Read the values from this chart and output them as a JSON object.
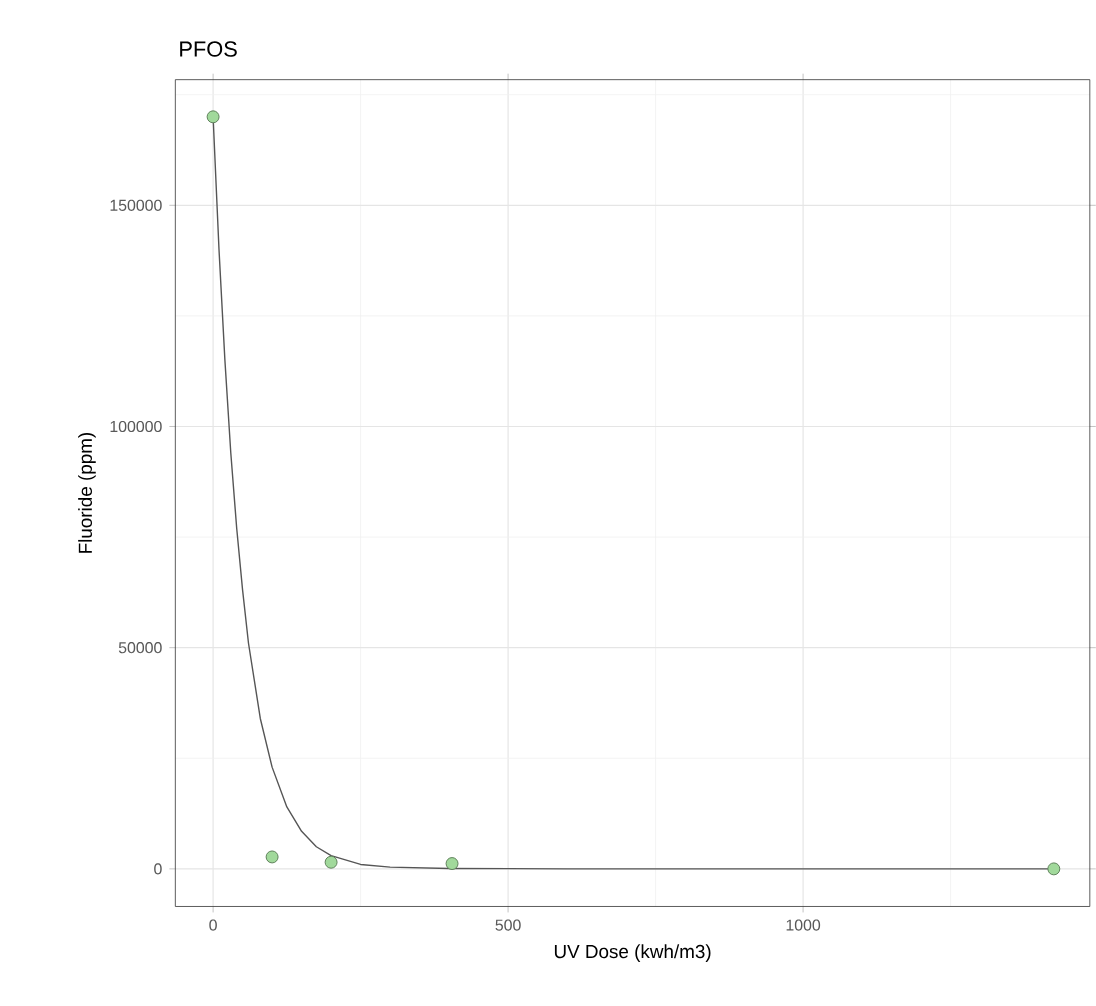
{
  "chart_data": {
    "type": "scatter",
    "title": "PFOS",
    "xlabel": "UV Dose (kwh/m3)",
    "ylabel": "Fluoride (ppm)",
    "xlim": [
      -64,
      1486
    ],
    "ylim": [
      -8500,
      178400
    ],
    "xticks": [
      0,
      500,
      1000
    ],
    "yticks": [
      0,
      50000,
      100000,
      150000
    ],
    "grid": true,
    "series": [
      {
        "marker": "circle",
        "color": "#a1d99b",
        "x": [
          0,
          100,
          200,
          405,
          1425
        ],
        "values": [
          170000,
          2700,
          1500,
          1200,
          0
        ]
      },
      {
        "type": "line",
        "marker": "none",
        "color": "#555555",
        "x": [
          0,
          10,
          20,
          30,
          40,
          50,
          60,
          80,
          100,
          125,
          150,
          175,
          200,
          250,
          300,
          400,
          600,
          1000,
          1425
        ],
        "values": [
          170000,
          140000,
          115000,
          94000,
          77000,
          63000,
          51000,
          34000,
          23000,
          14000,
          8500,
          5000,
          3000,
          1000,
          400,
          100,
          0,
          0,
          0
        ]
      }
    ]
  }
}
